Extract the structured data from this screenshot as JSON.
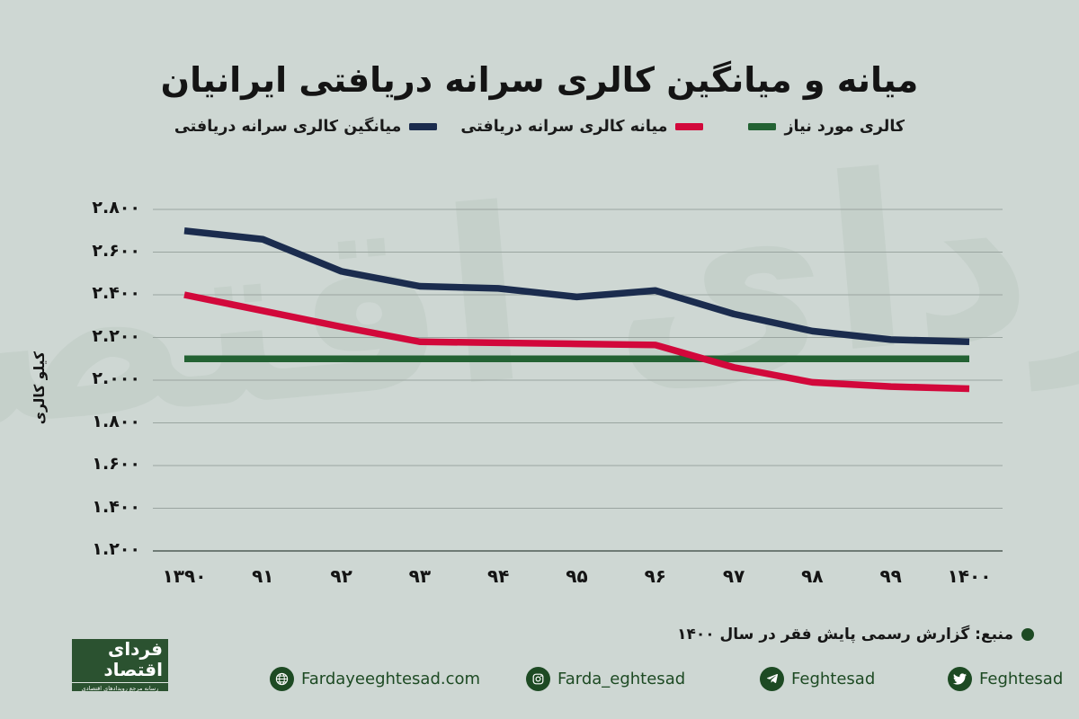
{
  "title": "میانه و میانگین کالری سرانه دریافتی ایرانیان",
  "watermark_text": "فردای اقتصاد",
  "y_axis_title": "کیلو کالری",
  "chart_data": {
    "type": "line",
    "x_tick_labels": [
      "۱۳۹۰",
      "۹۱",
      "۹۲",
      "۹۳",
      "۹۴",
      "۹۵",
      "۹۶",
      "۹۷",
      "۹۸",
      "۹۹",
      "۱۴۰۰"
    ],
    "x_years": [
      1390,
      1391,
      1392,
      1393,
      1394,
      1395,
      1396,
      1397,
      1398,
      1399,
      1400
    ],
    "series": [
      {
        "name": "میانگین کالری سرانه دریافتی",
        "color": "#1b2c4e",
        "values": [
          2700,
          2660,
          2510,
          2440,
          2430,
          2390,
          2420,
          2310,
          2230,
          2190,
          2180
        ]
      },
      {
        "name": "میانه کالری سرانه دریافتی",
        "color": "#d2083b",
        "values": [
          2400,
          2325,
          2250,
          2180,
          2175,
          2170,
          2165,
          2060,
          1990,
          1970,
          1960
        ]
      },
      {
        "name": "کالری مورد نیاز",
        "color": "#236233",
        "values": [
          2100,
          2100,
          2100,
          2100,
          2100,
          2100,
          2100,
          2100,
          2100,
          2100,
          2100
        ]
      }
    ],
    "ylabel": "کیلو کالری",
    "ylim": [
      1200,
      2800
    ],
    "y_ticks": [
      2800,
      2600,
      2400,
      2200,
      2000,
      1800,
      1600,
      1400,
      1200
    ],
    "y_tick_labels": [
      "۲.۸۰۰",
      "۲.۶۰۰",
      "۲.۴۰۰",
      "۲.۲۰۰",
      "۲.۰۰۰",
      "۱.۸۰۰",
      "۱.۶۰۰",
      "۱.۴۰۰",
      "۱.۲۰۰"
    ],
    "grid": "horizontal",
    "legend_position": "top"
  },
  "footer": {
    "source_text": "منبع: گزارش رسمی پایش فقر در سال ۱۴۰۰",
    "logo": {
      "name": "فردای اقتصاد",
      "tagline": "رسانه مرجع رویدادهای اقتصادی"
    },
    "social": [
      {
        "icon": "globe-icon",
        "label": "Fardayeeghtesad.com"
      },
      {
        "icon": "instagram-icon",
        "label": "Farda_eghtesad"
      },
      {
        "icon": "telegram-icon",
        "label": "Feghtesad"
      },
      {
        "icon": "twitter-icon",
        "label": "Feghtesad"
      }
    ]
  },
  "colors": {
    "background": "#ced7d3",
    "grid": "#9aa5a0",
    "axis": "#6f7b75",
    "mean_line": "#1b2c4e",
    "median_line": "#d2083b",
    "required_line": "#236233",
    "footer_green": "#1d4a23",
    "logo_background": "#2b5230",
    "watermark": "#c3cfc9"
  }
}
